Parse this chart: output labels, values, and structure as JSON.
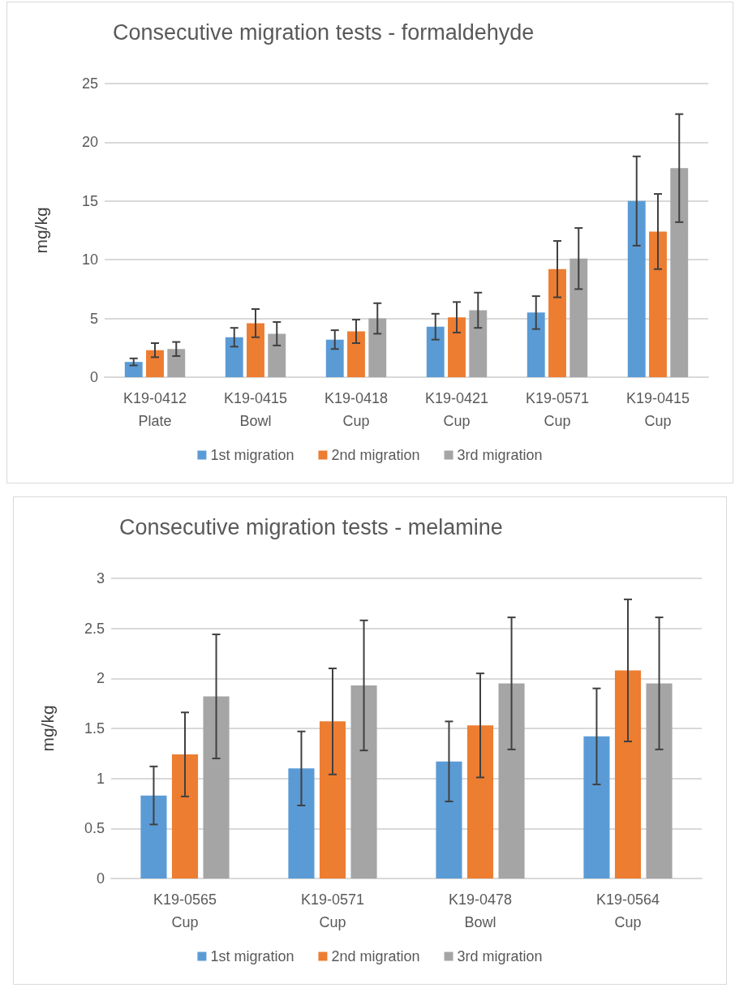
{
  "chart_data": [
    {
      "type": "bar",
      "title": "Consecutive migration tests - formaldehyde",
      "ylabel": "mg/kg",
      "categories": [
        "K19-0412\nPlate",
        "K19-0415\nBowl",
        "K19-0418\nCup",
        "K19-0421\nCup",
        "K19-0571\nCup",
        "K19-0415\nCup"
      ],
      "series": [
        {
          "name": "1st migration",
          "color": "#5b9bd5",
          "values": [
            1.3,
            3.4,
            3.2,
            4.3,
            5.5,
            15.0
          ],
          "errors": [
            0.3,
            0.8,
            0.8,
            1.1,
            1.4,
            3.8
          ]
        },
        {
          "name": "2nd migration",
          "color": "#ed7d31",
          "values": [
            2.3,
            4.6,
            3.9,
            5.1,
            9.2,
            12.4
          ],
          "errors": [
            0.6,
            1.2,
            1.0,
            1.3,
            2.4,
            3.2
          ]
        },
        {
          "name": "3rd migration",
          "color": "#a5a5a5",
          "values": [
            2.4,
            3.7,
            5.0,
            5.7,
            10.1,
            17.8
          ],
          "errors": [
            0.6,
            1.0,
            1.3,
            1.5,
            2.6,
            4.6
          ]
        }
      ],
      "ylim": [
        0,
        25
      ],
      "yticks": [
        0,
        5,
        10,
        15,
        20,
        25
      ],
      "grid": "y",
      "legend": "bottom"
    },
    {
      "type": "bar",
      "title": "Consecutive migration tests - melamine",
      "ylabel": "mg/kg",
      "categories": [
        "K19-0565\nCup",
        "K19-0571\nCup",
        "K19-0478\nBowl",
        "K19-0564\nCup"
      ],
      "series": [
        {
          "name": "1st migration",
          "color": "#5b9bd5",
          "values": [
            0.83,
            1.1,
            1.17,
            1.42
          ],
          "errors": [
            0.29,
            0.37,
            0.4,
            0.48
          ]
        },
        {
          "name": "2nd migration",
          "color": "#ed7d31",
          "values": [
            1.24,
            1.57,
            1.53,
            2.08
          ],
          "errors": [
            0.42,
            0.53,
            0.52,
            0.71
          ]
        },
        {
          "name": "3rd migration",
          "color": "#a5a5a5",
          "values": [
            1.82,
            1.93,
            1.95,
            1.95
          ],
          "errors": [
            0.62,
            0.65,
            0.66,
            0.66
          ]
        }
      ],
      "ylim": [
        0,
        3
      ],
      "yticks": [
        0,
        0.5,
        1,
        1.5,
        2,
        2.5,
        3
      ],
      "grid": "y",
      "legend": "bottom"
    }
  ]
}
